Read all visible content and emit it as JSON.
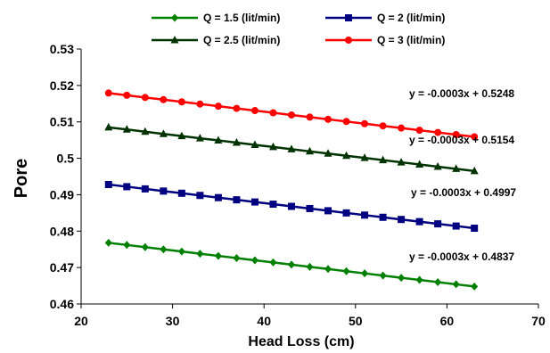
{
  "chart_data": {
    "type": "line",
    "xlabel": "Head Loss (cm)",
    "ylabel": "Pore",
    "xlim": [
      20,
      70
    ],
    "ylim": [
      0.46,
      0.53
    ],
    "xticks": [
      "20",
      "30",
      "40",
      "50",
      "60",
      "70"
    ],
    "yticks": [
      "0.46",
      "0.47",
      "0.48",
      "0.49",
      "0.5",
      "0.51",
      "0.52",
      "0.53"
    ],
    "grid": false,
    "legend_position": "top",
    "x": [
      23,
      25,
      27,
      29,
      31,
      33,
      35,
      37,
      39,
      41,
      43,
      45,
      47,
      49,
      51,
      53,
      55,
      57,
      59,
      61,
      63
    ],
    "series": [
      {
        "name": "Q = 1.5 (lit/min)",
        "color": "#008000",
        "marker": "diamond",
        "values": [
          0.4768,
          0.4762,
          0.4756,
          0.475,
          0.4744,
          0.4738,
          0.4732,
          0.4726,
          0.472,
          0.4714,
          0.4708,
          0.4702,
          0.4696,
          0.469,
          0.4684,
          0.4678,
          0.4672,
          0.4666,
          0.466,
          0.4654,
          0.4648
        ],
        "equation": "y = -0.0003x + 0.4837"
      },
      {
        "name": "Q = 2 (lit/min)",
        "color": "#000080",
        "marker": "square",
        "values": [
          0.4928,
          0.4922,
          0.4916,
          0.491,
          0.4904,
          0.4898,
          0.4892,
          0.4886,
          0.488,
          0.4874,
          0.4868,
          0.4862,
          0.4856,
          0.485,
          0.4844,
          0.4838,
          0.4832,
          0.4826,
          0.482,
          0.4814,
          0.4808
        ],
        "equation": "y = -0.0003x + 0.4997"
      },
      {
        "name": "Q = 2.5 (lit/min)",
        "color": "#003300",
        "marker": "triangle",
        "values": [
          0.5085,
          0.5079,
          0.5073,
          0.5067,
          0.5061,
          0.5055,
          0.5049,
          0.5043,
          0.5037,
          0.5031,
          0.5025,
          0.5019,
          0.5013,
          0.5007,
          0.5001,
          0.4995,
          0.4989,
          0.4983,
          0.4977,
          0.4971,
          0.4965
        ],
        "equation": "y = -0.0003x + 0.5154"
      },
      {
        "name": "Q = 3 (lit/min)",
        "color": "#ff0000",
        "marker": "circle",
        "values": [
          0.5179,
          0.5173,
          0.5167,
          0.5161,
          0.5155,
          0.5149,
          0.5143,
          0.5137,
          0.5131,
          0.5125,
          0.5119,
          0.5113,
          0.5107,
          0.5101,
          0.5095,
          0.5089,
          0.5083,
          0.5077,
          0.5071,
          0.5065,
          0.5059
        ],
        "equation": "y = -0.0003x + 0.5248"
      }
    ]
  }
}
